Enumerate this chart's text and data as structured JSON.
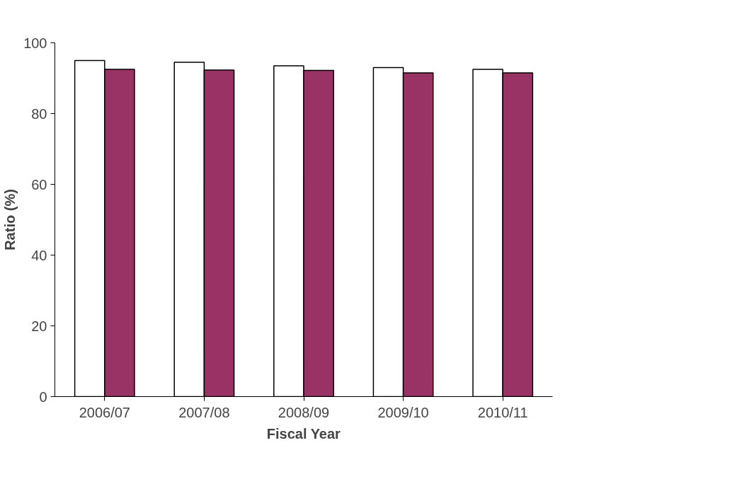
{
  "chart_data": {
    "type": "bar",
    "xlabel": "Fiscal Year",
    "ylabel": "Ratio (%)",
    "categories": [
      "2006/07",
      "2007/08",
      "2008/09",
      "2009/10",
      "2010/11"
    ],
    "series": [
      {
        "color": "#ffffff",
        "values": [
          95,
          94.5,
          93.5,
          93,
          92.5
        ]
      },
      {
        "color": "#993366",
        "values": [
          92.5,
          92.3,
          92.2,
          91.5,
          91.5
        ]
      }
    ],
    "ylim": [
      0,
      100
    ],
    "yticks": [
      0,
      20,
      40,
      60,
      80,
      100
    ],
    "grid": false
  }
}
